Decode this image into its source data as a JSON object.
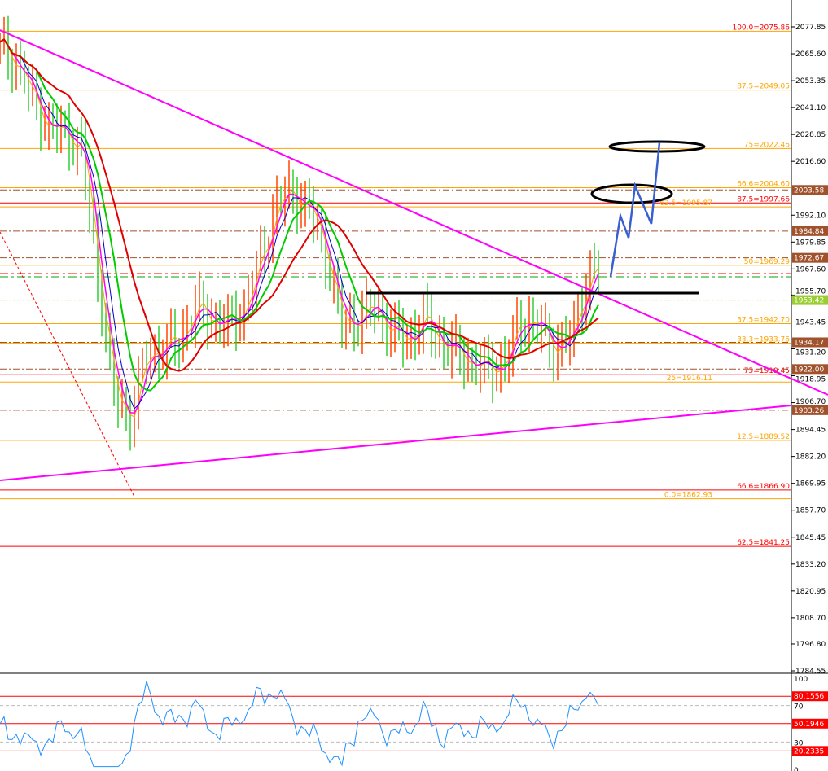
{
  "chart_data": {
    "type": "line",
    "title": "",
    "price_axis": {
      "ticks": [
        2077.85,
        2065.6,
        2053.35,
        2041.1,
        2028.85,
        2016.6,
        1992.1,
        1979.85,
        1967.6,
        1955.7,
        1943.45,
        1931.2,
        1918.95,
        1906.7,
        1894.45,
        1882.2,
        1869.95,
        1857.7,
        1845.45,
        1833.2,
        1820.95,
        1808.7,
        1796.8,
        1784.55
      ],
      "range": [
        1784.55,
        2077.85
      ]
    },
    "close_series": [
      2068,
      2062,
      2045,
      2032,
      2030,
      2022,
      1965,
      1910,
      1900,
      1928,
      1932,
      1935,
      1950,
      1945,
      1942,
      1950,
      1972,
      1998,
      2002,
      1995,
      1975,
      1942,
      1945,
      1950,
      1940,
      1935,
      1945,
      1935,
      1930,
      1925,
      1922,
      1925,
      1945,
      1942,
      1932,
      1935,
      1962,
      1970
    ],
    "fib_levels": [
      {
        "label": "100.0=2075.86",
        "price": 2075.86,
        "color": "#ff0000",
        "line": "#ffa500"
      },
      {
        "label": "87.5=2049.05",
        "price": 2049.05,
        "color": "#ffa500",
        "line": "#ffa500"
      },
      {
        "label": "75=2022.46",
        "price": 2022.46,
        "color": "#ffa500",
        "line": "#ffa500"
      },
      {
        "label": "66.6=2004.60",
        "price": 2004.6,
        "color": "#ffa500",
        "line": "#ffa500"
      },
      {
        "label": "87.5=1997.66",
        "price": 1997.66,
        "color": "#ff0000",
        "line": "#ff0000"
      },
      {
        "label": "62.5=1995.87",
        "price": 1995.87,
        "color": "#ffa500",
        "line": "#ffa500"
      },
      {
        "label": "50=1969.29",
        "price": 1969.29,
        "color": "#ffa500",
        "line": "#ffa500"
      },
      {
        "label": "37.5=1942.70",
        "price": 1942.7,
        "color": "#ffa500",
        "line": "#ffa500"
      },
      {
        "label": "33.3=1933.76",
        "price": 1933.76,
        "color": "#ffa500",
        "line": "#ffa500"
      },
      {
        "label": "75=1919.45",
        "price": 1919.45,
        "color": "#ff0000",
        "line": "#ff0000"
      },
      {
        "label": "25=1916.11",
        "price": 1916.11,
        "color": "#ffa500",
        "line": "#ffa500"
      },
      {
        "label": "12.5=1889.52",
        "price": 1889.52,
        "color": "#ffa500",
        "line": "#ffa500"
      },
      {
        "label": "66.6=1866.90",
        "price": 1866.9,
        "color": "#ff0000",
        "line": "#ff0000"
      },
      {
        "label": "0.0=1862.93",
        "price": 1862.93,
        "color": "#ffa500",
        "line": "#ffa500"
      },
      {
        "label": "62.5=1841.25",
        "price": 1841.25,
        "color": "#ff0000",
        "line": "#ff0000"
      }
    ],
    "price_tags": [
      {
        "label": "2003.58",
        "price": 2003.58,
        "color": "#a0522d"
      },
      {
        "label": "1984.84",
        "price": 1984.84,
        "color": "#a0522d"
      },
      {
        "label": "1972.67",
        "price": 1972.67,
        "color": "#a0522d"
      },
      {
        "label": "1953.42",
        "price": 1953.42,
        "color": "#9acd32"
      },
      {
        "label": "1934.17",
        "price": 1934.17,
        "color": "#a0522d"
      },
      {
        "label": "1922.00",
        "price": 1922.0,
        "color": "#a0522d"
      },
      {
        "label": "1903.26",
        "price": 1903.26,
        "color": "#a0522d"
      }
    ],
    "rsi": {
      "ticks": [
        100,
        70,
        30,
        0
      ],
      "levels": [
        {
          "label": "80.1556",
          "value": 80.1556
        },
        {
          "label": "50.1946",
          "value": 50.1946
        },
        {
          "label": "20.2335",
          "value": 20.2335
        }
      ],
      "color": "#1e90ff"
    },
    "colors": {
      "magenta": "#ff00ff",
      "ma_red": "#e00000",
      "ma_green": "#00cc00",
      "ma_blue": "#0000cc",
      "arrow": "#3a5fd0"
    }
  }
}
